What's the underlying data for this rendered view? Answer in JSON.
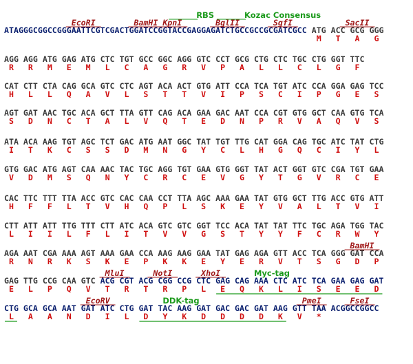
{
  "rows": [
    {
      "annotations": [
        {
          "label": "EcoRI",
          "kind": "site"
        },
        {
          "label": "BamHI",
          "kind": "site"
        },
        {
          "label": "KpnI",
          "kind": "site"
        },
        {
          "label": "BglII",
          "kind": "site"
        },
        {
          "label": "SgfI",
          "kind": "site"
        },
        {
          "label": "SacII",
          "kind": "site"
        },
        {
          "label": "RBS",
          "kind": "tag"
        },
        {
          "label": "Kozac Consensus",
          "kind": "tag"
        }
      ],
      "dna": [
        {
          "seq": "ATAGGGCGGCCGGGAATTCGTCGACTGGATCCGGTACCGAGGAGATCTGCCGCCGCGATCGCC",
          "style": "vector"
        },
        {
          "seq": "ATG ACC GCG GGG",
          "style": "orf"
        }
      ],
      "protein": [
        "M",
        "T",
        "A",
        "G"
      ]
    },
    {
      "annotations": [],
      "dna": [
        {
          "seq": "AGG AGG ATG GAG ATG CTC TGT GCC GGC AGG GTC CCT GCG CTG CTC TGC CTG GGT TTC",
          "style": "orf"
        }
      ],
      "protein": [
        "R",
        "R",
        "M",
        "E",
        "M",
        "L",
        "C",
        "A",
        "G",
        "R",
        "V",
        "P",
        "A",
        "L",
        "L",
        "C",
        "L",
        "G",
        "F"
      ]
    },
    {
      "annotations": [],
      "dna": [
        {
          "seq": "CAT CTT CTA CAG GCA GTC CTC AGT ACA ACT GTG ATT CCA TCA TGT ATC CCA GGA GAG TCC",
          "style": "orf"
        }
      ],
      "protein": [
        "H",
        "L",
        "L",
        "Q",
        "A",
        "V",
        "L",
        "S",
        "T",
        "T",
        "V",
        "I",
        "P",
        "S",
        "C",
        "I",
        "P",
        "G",
        "E",
        "S"
      ]
    },
    {
      "annotations": [],
      "dna": [
        {
          "seq": "AGT GAT AAC TGC ACA GCT TTA GTT CAG ACA GAA GAC AAT CCA CGT GTG GCT CAA GTG TCA",
          "style": "orf"
        }
      ],
      "protein": [
        "S",
        "D",
        "N",
        "C",
        "T",
        "A",
        "L",
        "V",
        "Q",
        "T",
        "E",
        "D",
        "N",
        "P",
        "R",
        "V",
        "A",
        "Q",
        "V",
        "S"
      ]
    },
    {
      "annotations": [],
      "dna": [
        {
          "seq": "ATA ACA AAG TGT AGC TCT GAC ATG AAT GGC TAT TGT TTG CAT GGA CAG TGC ATC TAT CTG",
          "style": "orf"
        }
      ],
      "protein": [
        "I",
        "T",
        "K",
        "C",
        "S",
        "S",
        "D",
        "M",
        "N",
        "G",
        "Y",
        "C",
        "L",
        "H",
        "G",
        "Q",
        "C",
        "I",
        "Y",
        "L"
      ]
    },
    {
      "annotations": [],
      "dna": [
        {
          "seq": "GTG GAC ATG AGT CAA AAC TAC TGC AGG TGT GAA GTG GGT TAT ACT GGT GTC CGA TGT GAA",
          "style": "orf"
        }
      ],
      "protein": [
        "V",
        "D",
        "M",
        "S",
        "Q",
        "N",
        "Y",
        "C",
        "R",
        "C",
        "E",
        "V",
        "G",
        "Y",
        "T",
        "G",
        "V",
        "R",
        "C",
        "E"
      ]
    },
    {
      "annotations": [],
      "dna": [
        {
          "seq": "CAC TTC TTT TTA ACC GTC CAC CAA CCT TTA AGC AAA GAA TAT GTG GCT TTG ACC GTG ATT",
          "style": "orf"
        }
      ],
      "protein": [
        "H",
        "F",
        "F",
        "L",
        "T",
        "V",
        "H",
        "Q",
        "P",
        "L",
        "S",
        "K",
        "E",
        "Y",
        "V",
        "A",
        "L",
        "T",
        "V",
        "I"
      ]
    },
    {
      "annotations": [],
      "dna": [
        {
          "seq": "CTT ATT ATT TTG TTT CTT ATC ACA GTC GTC GGT TCC ACA TAT TAT TTC TGC AGA TGG TAC",
          "style": "orf"
        }
      ],
      "protein": [
        "L",
        "I",
        "I",
        "L",
        "F",
        "L",
        "I",
        "T",
        "V",
        "V",
        "G",
        "S",
        "T",
        "Y",
        "Y",
        "F",
        "C",
        "R",
        "W",
        "Y"
      ]
    },
    {
      "annotations": [
        {
          "label": "BamHI",
          "kind": "site"
        }
      ],
      "dna": [
        {
          "seq": "AGA AAT CGA AAA AGT AAA GAA CCA AAG AAG GAA TAT GAG AGA GTT ACC TCA GGG GAT CCA",
          "style": "orf"
        }
      ],
      "protein": [
        "R",
        "N",
        "R",
        "K",
        "S",
        "K",
        "E",
        "P",
        "K",
        "K",
        "E",
        "Y",
        "E",
        "R",
        "V",
        "T",
        "S",
        "G",
        "D",
        "P"
      ]
    },
    {
      "annotations": [
        {
          "label": "MluI",
          "kind": "site"
        },
        {
          "label": "NotI",
          "kind": "site"
        },
        {
          "label": "XhoI",
          "kind": "site"
        },
        {
          "label": "Myc-tag",
          "kind": "tag"
        }
      ],
      "dna": [
        {
          "seq": "GAG TTG CCG CAA GTC",
          "style": "orf"
        },
        {
          "seq": "ACG CGT ACG CGG CCG CTC GAG CAG AAA CTC ATC TCA GAA GAG GAT",
          "style": "vector"
        }
      ],
      "protein": [
        "E",
        "L",
        "P",
        "Q",
        "V",
        "T",
        "R",
        "T",
        "R",
        "P",
        "L",
        "E",
        "Q",
        "K",
        "L",
        "I",
        "S",
        "E",
        "E",
        "D"
      ]
    },
    {
      "annotations": [
        {
          "label": "EcoRV",
          "kind": "site"
        },
        {
          "label": "DDK-tag",
          "kind": "tag"
        },
        {
          "label": "PmeI",
          "kind": "site"
        },
        {
          "label": "FseI",
          "kind": "site"
        }
      ],
      "dna": [
        {
          "seq": "CTG GCA GCA AAT GAT ATC CTG GAT TAC AAG GAT GAC GAC GAT AAG GTT TAA ACGGCCGGCC",
          "style": "vector"
        }
      ],
      "protein": [
        "L",
        "A",
        "A",
        "N",
        "D",
        "I",
        "L",
        "D",
        "Y",
        "K",
        "D",
        "D",
        "D",
        "D",
        "K",
        "V",
        "*"
      ]
    }
  ]
}
